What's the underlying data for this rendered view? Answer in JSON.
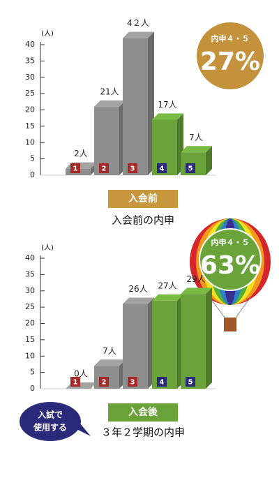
{
  "chart_data": [
    {
      "type": "bar",
      "title": "入会前の内申",
      "badge": "入会前",
      "unit_label": "(人)",
      "categories": [
        "1",
        "2",
        "3",
        "4",
        "5"
      ],
      "values": [
        2,
        21,
        42,
        17,
        7
      ],
      "value_labels": [
        "2人",
        "21人",
        "4２人",
        "17人",
        "7人"
      ],
      "colors": [
        "#8e8e8e",
        "#8e8e8e",
        "#8e8e8e",
        "#6aa33a",
        "#6aa33a"
      ],
      "category_colors": [
        "#a52a2a",
        "#a52a2a",
        "#a52a2a",
        "#2b2a7a",
        "#2b2a7a"
      ],
      "ylim": [
        0,
        40
      ],
      "yticks": [
        0,
        5,
        10,
        15,
        20,
        25,
        30,
        35,
        40
      ],
      "annotation": {
        "heading": "内申４・５",
        "text": "27%"
      }
    },
    {
      "type": "bar",
      "title": "３年２学期の内申",
      "badge": "入会後",
      "unit_label": "(人)",
      "categories": [
        "1",
        "2",
        "3",
        "4",
        "5"
      ],
      "values": [
        0,
        7,
        26,
        27,
        29
      ],
      "value_labels": [
        "0人",
        "7人",
        "26人",
        "27人",
        "29人"
      ],
      "colors": [
        "#8e8e8e",
        "#8e8e8e",
        "#8e8e8e",
        "#6aa33a",
        "#6aa33a"
      ],
      "category_colors": [
        "#a52a2a",
        "#a52a2a",
        "#a52a2a",
        "#2b2a7a",
        "#2b2a7a"
      ],
      "ylim": [
        0,
        40
      ],
      "yticks": [
        0,
        5,
        10,
        15,
        20,
        25,
        30,
        35,
        40
      ],
      "annotation": {
        "heading": "内申４・５",
        "text": "63%"
      },
      "callout": [
        "入試で",
        "使用する"
      ]
    }
  ]
}
